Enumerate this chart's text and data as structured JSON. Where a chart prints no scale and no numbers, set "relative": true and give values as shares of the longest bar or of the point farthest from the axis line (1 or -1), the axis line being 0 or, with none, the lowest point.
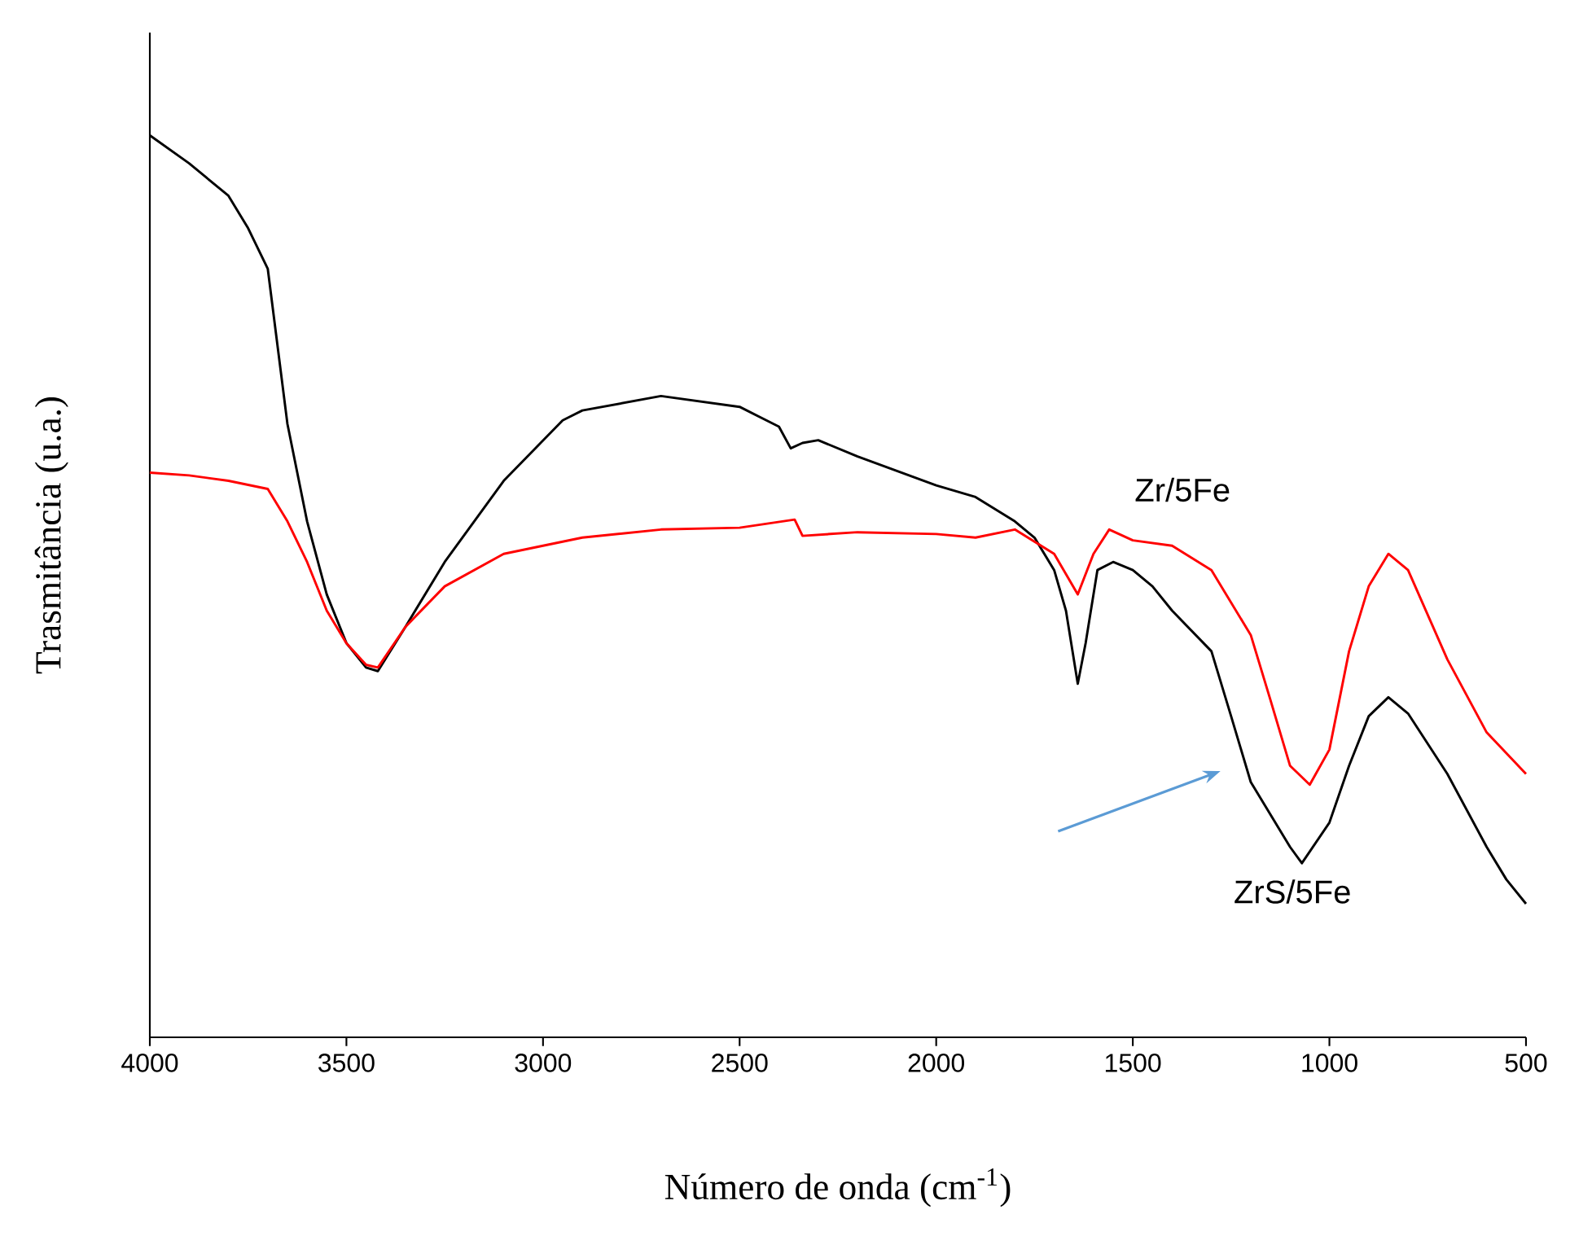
{
  "chart_data": {
    "type": "line",
    "relative": true,
    "xlabel": "Número de onda (cm$^{-1}$)",
    "ylabel": "Trasmitância (u.a.)",
    "xlim": [
      4000,
      500
    ],
    "xticks": [
      4000,
      3500,
      3000,
      2500,
      2000,
      1500,
      1000,
      500
    ],
    "series": [
      {
        "name": "ZrS/5Fe",
        "color": "#000000",
        "x": [
          4000,
          3900,
          3800,
          3750,
          3700,
          3650,
          3600,
          3550,
          3500,
          3450,
          3420,
          3350,
          3250,
          3100,
          2950,
          2900,
          2700,
          2500,
          2400,
          2370,
          2340,
          2300,
          2200,
          2000,
          1900,
          1800,
          1750,
          1700,
          1670,
          1640,
          1620,
          1590,
          1550,
          1500,
          1450,
          1400,
          1300,
          1250,
          1200,
          1150,
          1100,
          1070,
          1000,
          950,
          900,
          850,
          800,
          700,
          600,
          550,
          500
        ],
        "values": [
          1.0,
          0.969,
          0.933,
          0.897,
          0.852,
          0.68,
          0.572,
          0.491,
          0.437,
          0.41,
          0.406,
          0.455,
          0.527,
          0.617,
          0.684,
          0.695,
          0.711,
          0.699,
          0.677,
          0.653,
          0.659,
          0.662,
          0.644,
          0.612,
          0.599,
          0.572,
          0.554,
          0.518,
          0.473,
          0.392,
          0.437,
          0.518,
          0.527,
          0.518,
          0.5,
          0.473,
          0.428,
          0.356,
          0.283,
          0.247,
          0.211,
          0.193,
          0.238,
          0.301,
          0.356,
          0.377,
          0.359,
          0.292,
          0.211,
          0.175,
          0.148
        ]
      },
      {
        "name": "Zr/5Fe",
        "color": "#ff0000",
        "x": [
          4000,
          3900,
          3800,
          3700,
          3650,
          3600,
          3550,
          3500,
          3450,
          3420,
          3350,
          3250,
          3100,
          2900,
          2700,
          2500,
          2360,
          2340,
          2200,
          2000,
          1900,
          1800,
          1700,
          1640,
          1600,
          1560,
          1500,
          1400,
          1300,
          1200,
          1150,
          1100,
          1050,
          1000,
          950,
          900,
          850,
          800,
          700,
          600,
          500
        ],
        "values": [
          0.626,
          0.623,
          0.617,
          0.608,
          0.572,
          0.527,
          0.473,
          0.437,
          0.413,
          0.41,
          0.455,
          0.5,
          0.536,
          0.554,
          0.563,
          0.565,
          0.574,
          0.556,
          0.56,
          0.558,
          0.554,
          0.563,
          0.536,
          0.491,
          0.536,
          0.563,
          0.551,
          0.545,
          0.518,
          0.446,
          0.374,
          0.301,
          0.28,
          0.319,
          0.428,
          0.5,
          0.536,
          0.518,
          0.419,
          0.338,
          0.292
        ]
      }
    ]
  }
}
